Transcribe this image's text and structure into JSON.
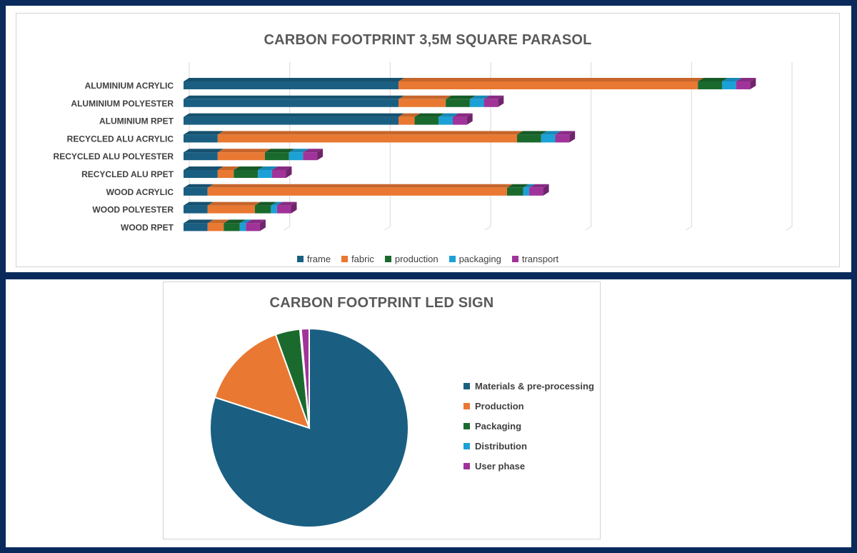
{
  "bar_chart": {
    "title": "CARBON FOOTPRINT 3,5M SQUARE PARASOL"
  },
  "pie_chart": {
    "title": "CARBON FOOTPRINT LED SIGN"
  },
  "colors": {
    "frame": "#1a5f82",
    "fabric": "#e97832",
    "production": "#1a6a2e",
    "packaging": "#1ba1d6",
    "transport": "#a0339a"
  },
  "chart_data": [
    {
      "type": "bar",
      "orientation": "horizontal",
      "stacked": true,
      "title": "CARBON FOOTPRINT 3,5M SQUARE PARASOL",
      "categories": [
        "ALUMINIUM ACRYLIC",
        "ALUMINIUM POLYESTER",
        "ALUMINIUM RPET",
        "RECYCLED ALU ACRYLIC",
        "RECYCLED ALU POLYESTER",
        "RECYCLED ALU RPET",
        "WOOD ACRYLIC",
        "WOOD POLYESTER",
        "WOOD RPET"
      ],
      "series": [
        {
          "name": "frame",
          "values": [
            107,
            107,
            107,
            17,
            17,
            17,
            12,
            12,
            12
          ]
        },
        {
          "name": "fabric",
          "values": [
            149,
            23.5,
            8,
            149,
            23.5,
            8,
            149,
            23.5,
            8
          ]
        },
        {
          "name": "production",
          "values": [
            12,
            12,
            12,
            12,
            12,
            12,
            8,
            8,
            8
          ]
        },
        {
          "name": "packaging",
          "values": [
            7,
            7,
            7,
            7,
            7,
            7,
            3,
            3,
            3
          ]
        },
        {
          "name": "transport",
          "values": [
            7,
            7,
            7,
            7,
            7,
            7,
            7,
            7,
            7
          ]
        }
      ],
      "xlim": [
        0,
        300
      ],
      "grid": true,
      "legend_position": "bottom"
    },
    {
      "type": "pie",
      "title": "CARBON FOOTPRINT LED SIGN",
      "labels": [
        "Materials & pre-processing",
        "Production",
        "Packaging",
        "Distribution",
        "User phase"
      ],
      "values": [
        80,
        14.5,
        4,
        0.2,
        1.3
      ],
      "legend_position": "right"
    }
  ]
}
